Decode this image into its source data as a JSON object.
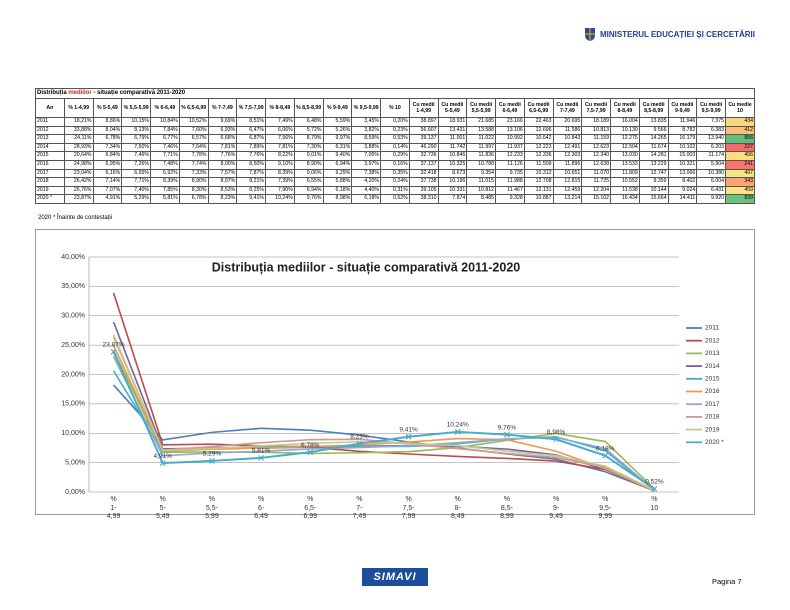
{
  "header": {
    "ministry": "MINISTERUL EDUCAȚIEI ȘI CERCETĂRII"
  },
  "table": {
    "title": [
      "Distribuția ",
      "mediilor",
      " - situație comparativă 2011-2020"
    ],
    "headers": [
      "An",
      "% 1-4,99",
      "% 5-5,49",
      "% 5,5-5,99",
      "% 6-6,49",
      "% 6,5-6,99",
      "% 7-7,49",
      "% 7,5-7,99",
      "% 8-8,49",
      "% 8,5-8,99",
      "% 9-9,49",
      "% 9,5-9,99",
      "% 10",
      "Cu medii 1-4,99",
      "Cu medii 5-5,49",
      "Cu medii 5,5-5,99",
      "Cu medii 6-6,49",
      "Cu medii 6,5-6,99",
      "Cu medii 7-7,49",
      "Cu medii 7,5-7,99",
      "Cu medii 8-8,49",
      "Cu medii 8,5-8,99",
      "Cu medii 9-9,49",
      "Cu medii 9,5-9,99",
      "Cu medie 10"
    ],
    "rows": [
      [
        "2011",
        "18,21%",
        "8,86%",
        "10,15%",
        "10,84%",
        "10,52%",
        "9,69%",
        "8,51%",
        "7,49%",
        "6,48%",
        "5,59%",
        "3,45%",
        "0,20%",
        "38.897",
        "18.931",
        "21.685",
        "23.166",
        "22.463",
        "20.695",
        "18.189",
        "16.004",
        "13.835",
        "11.946",
        "7.375",
        "434"
      ],
      [
        "2012",
        "33,88%",
        "8,04%",
        "8,13%",
        "7,84%",
        "7,60%",
        "6,93%",
        "6,47%",
        "6,06%",
        "5,72%",
        "5,26%",
        "3,82%",
        "0,23%",
        "56.607",
        "13.431",
        "13.588",
        "13.106",
        "12.696",
        "11.586",
        "10.813",
        "10.130",
        "9.566",
        "8.782",
        "6.383",
        "412"
      ],
      [
        "2013",
        "24,11%",
        "6,78%",
        "6,79%",
        "6,77%",
        "6,57%",
        "6,68%",
        "6,87%",
        "7,56%",
        "8,79%",
        "9,97%",
        "8,59%",
        "0,53%",
        "39.137",
        "11.001",
        "11.022",
        "10.992",
        "10.642",
        "10.843",
        "11.159",
        "12.275",
        "14.265",
        "16.179",
        "13.940",
        "856"
      ],
      [
        "2014",
        "28,93%",
        "7,34%",
        "7,50%",
        "7,46%",
        "7,64%",
        "7,81%",
        "7,89%",
        "7,81%",
        "7,30%",
        "6,31%",
        "3,88%",
        "0,14%",
        "46.290",
        "11.742",
        "11.997",
        "11.937",
        "12.223",
        "12.491",
        "12.623",
        "12.504",
        "11.674",
        "10.102",
        "6.203",
        "227"
      ],
      [
        "2015",
        "20,64%",
        "6,84%",
        "7,46%",
        "7,71%",
        "7,78%",
        "7,76%",
        "7,76%",
        "8,22%",
        "9,01%",
        "9,40%",
        "7,05%",
        "0,29%",
        "32.736",
        "10.846",
        "11.836",
        "12.233",
        "12.336",
        "12.303",
        "12.340",
        "13.030",
        "14.281",
        "15.003",
        "11.174",
        "456"
      ],
      [
        "2016",
        "24,98%",
        "6,95%",
        "7,26%",
        "7,48%",
        "7,74%",
        "8,00%",
        "8,50%",
        "9,10%",
        "8,90%",
        "6,94%",
        "3,97%",
        "0,16%",
        "37.137",
        "10.325",
        "10.788",
        "11.126",
        "11.509",
        "11.896",
        "12.638",
        "13.533",
        "13.229",
        "10.321",
        "5.904",
        "241"
      ],
      [
        "2017",
        "23,04%",
        "6,16%",
        "6,65%",
        "6,92%",
        "7,33%",
        "7,57%",
        "7,87%",
        "8,39%",
        "9,06%",
        "9,29%",
        "7,38%",
        "0,35%",
        "32.418",
        "8.673",
        "9.354",
        "9.735",
        "10.312",
        "10.651",
        "11.070",
        "11.809",
        "12.747",
        "13.066",
        "10.380",
        "497"
      ],
      [
        "2018",
        "26,42%",
        "7,14%",
        "7,71%",
        "8,39%",
        "8,90%",
        "8,97%",
        "8,21%",
        "7,39%",
        "6,55%",
        "5,88%",
        "4,20%",
        "0,24%",
        "37.738",
        "10.196",
        "11.015",
        "11.988",
        "12.708",
        "12.815",
        "11.725",
        "10.552",
        "9.359",
        "8.402",
        "6.004",
        "343"
      ],
      [
        "2019",
        "26,76%",
        "7,07%",
        "7,40%",
        "7,85%",
        "8,30%",
        "8,53%",
        "8,25%",
        "7,90%",
        "6,94%",
        "6,18%",
        "4,40%",
        "0,31%",
        "39.105",
        "10.331",
        "10.812",
        "11.467",
        "12.131",
        "12.459",
        "12.204",
        "11.538",
        "10.144",
        "9.024",
        "6.431",
        "459"
      ],
      [
        "2020 *",
        "23,87%",
        "4,91%",
        "5,29%",
        "5,81%",
        "6,78%",
        "8,23%",
        "9,41%",
        "10,24%",
        "9,76%",
        "8,98%",
        "6,18%",
        "0,52%",
        "38.310",
        "7.874",
        "8.485",
        "9.328",
        "10.887",
        "13.214",
        "15.102",
        "16.434",
        "15.664",
        "14.411",
        "9.920",
        "839"
      ]
    ],
    "note": "2020 *  Înainte de contestații"
  },
  "chart_data": {
    "type": "line",
    "title": "Distribuția mediilor - situație comparativă 2011-2020",
    "categories": [
      "% 1-4,99",
      "% 5-5,49",
      "% 5,5-5,99",
      "% 6-6,49",
      "% 6,5-6,99",
      "% 7-7,49",
      "% 7,5-7,99",
      "% 8-8,49",
      "% 8,5-8,99",
      "% 9-9,49",
      "% 9,5-9,99",
      "% 10"
    ],
    "series": [
      {
        "name": "2011",
        "color": "#4a7ebb",
        "values": [
          18.21,
          8.86,
          10.15,
          10.84,
          10.52,
          9.69,
          8.51,
          7.49,
          6.48,
          5.59,
          3.45,
          0.2
        ]
      },
      {
        "name": "2012",
        "color": "#be4b48",
        "values": [
          33.88,
          8.04,
          8.13,
          7.84,
          7.6,
          6.93,
          6.47,
          6.06,
          5.72,
          5.26,
          3.82,
          0.23
        ]
      },
      {
        "name": "2013",
        "color": "#98b954",
        "values": [
          24.11,
          6.78,
          6.79,
          6.77,
          6.57,
          6.68,
          6.87,
          7.56,
          8.79,
          9.97,
          8.59,
          0.53
        ]
      },
      {
        "name": "2014",
        "color": "#7d60a0",
        "values": [
          28.93,
          7.34,
          7.5,
          7.46,
          7.64,
          7.81,
          7.89,
          7.81,
          7.3,
          6.31,
          3.88,
          0.14
        ]
      },
      {
        "name": "2015",
        "color": "#46aac5",
        "values": [
          20.64,
          6.84,
          7.46,
          7.71,
          7.78,
          7.76,
          7.76,
          8.22,
          9.01,
          9.4,
          7.05,
          0.29
        ]
      },
      {
        "name": "2016",
        "color": "#f79646",
        "values": [
          24.98,
          6.95,
          7.26,
          7.48,
          7.74,
          8.0,
          8.5,
          9.1,
          8.9,
          6.94,
          3.97,
          0.16
        ]
      },
      {
        "name": "2017",
        "color": "#8fa9d6",
        "values": [
          23.04,
          6.16,
          6.65,
          6.92,
          7.33,
          7.57,
          7.87,
          8.39,
          9.06,
          9.29,
          7.38,
          0.35
        ]
      },
      {
        "name": "2018",
        "color": "#d89493",
        "values": [
          26.42,
          7.14,
          7.71,
          8.39,
          8.9,
          8.97,
          8.21,
          7.39,
          6.55,
          5.88,
          4.2,
          0.24
        ]
      },
      {
        "name": "2019",
        "color": "#b7cf8e",
        "values": [
          26.76,
          7.07,
          7.4,
          7.85,
          8.3,
          8.53,
          8.25,
          7.9,
          6.94,
          6.18,
          4.4,
          0.31
        ]
      },
      {
        "name": "2020 *",
        "color": "#4bacc6",
        "values": [
          23.87,
          4.91,
          5.29,
          5.81,
          6.78,
          8.23,
          9.41,
          10.24,
          9.76,
          8.98,
          6.18,
          0.52
        ],
        "value_labels": [
          "23,87%",
          "4,91%",
          "5,29%",
          "5,81%",
          "6,78%",
          "8,23%",
          "9,41%",
          "10,24%",
          "9,76%",
          "8,98%",
          "6,18%",
          "0,52%"
        ]
      }
    ],
    "ylim": [
      0,
      40
    ],
    "yticks": [
      {
        "value": 0,
        "label": "0,00%"
      },
      {
        "value": 5,
        "label": "5,00%"
      },
      {
        "value": 10,
        "label": "10,00%"
      },
      {
        "value": 15,
        "label": "15,00%"
      },
      {
        "value": 20,
        "label": "20,00%"
      },
      {
        "value": 25,
        "label": "25,00%"
      },
      {
        "value": 30,
        "label": "30,00%"
      },
      {
        "value": 35,
        "label": "35,00%"
      },
      {
        "value": 40,
        "label": "40,00%"
      }
    ],
    "grid": true,
    "legend": "right"
  },
  "footer": {
    "logo": "SIMAVI",
    "page": "Pagina 7"
  }
}
